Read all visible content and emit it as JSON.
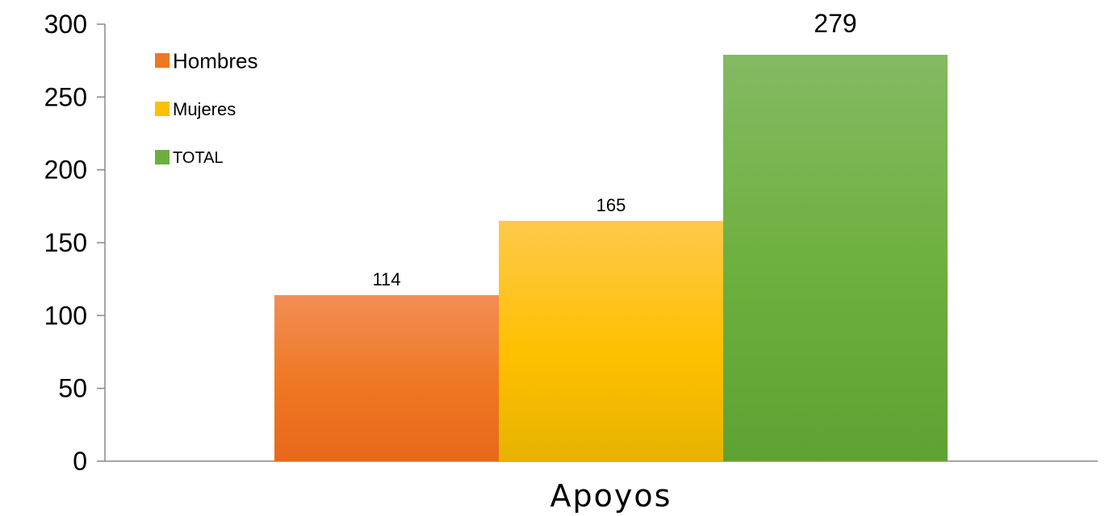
{
  "chart_data": {
    "type": "bar",
    "categories": [
      "Apoyos"
    ],
    "series": [
      {
        "name": "Hombres",
        "values": [
          114
        ],
        "color": "#EE7722",
        "color_light": "#F28E55",
        "color_dark": "#E8681A"
      },
      {
        "name": "Mujeres",
        "values": [
          165
        ],
        "color": "#FFC000",
        "color_light": "#FDC94B",
        "color_dark": "#E6B300"
      },
      {
        "name": "TOTAL",
        "values": [
          279
        ],
        "color": "#6DAF3D",
        "color_light": "#84BA63",
        "color_dark": "#5FA234"
      }
    ],
    "data_labels": [
      "114",
      "165",
      "279"
    ],
    "title": "",
    "xlabel": "",
    "ylabel": "",
    "ylim": [
      0,
      300
    ],
    "yticks": [
      0,
      50,
      100,
      150,
      200,
      250,
      300
    ],
    "grid": false,
    "legend_position": "top-left"
  }
}
